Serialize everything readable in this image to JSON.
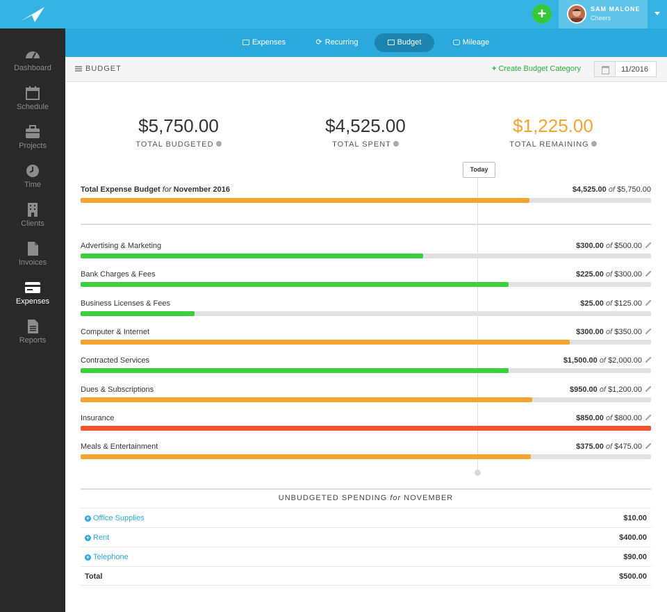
{
  "user": {
    "name": "SAM MALONE",
    "company": "Cheers"
  },
  "header": {
    "add_label": "+"
  },
  "sidebar": {
    "items": [
      {
        "label": "Dashboard",
        "icon": "dashboard-icon",
        "active": false
      },
      {
        "label": "Schedule",
        "icon": "calendar-icon",
        "active": false
      },
      {
        "label": "Projects",
        "icon": "briefcase-icon",
        "active": false
      },
      {
        "label": "Time",
        "icon": "clock-icon",
        "active": false
      },
      {
        "label": "Clients",
        "icon": "building-icon",
        "active": false
      },
      {
        "label": "Invoices",
        "icon": "document-icon",
        "active": false
      },
      {
        "label": "Expenses",
        "icon": "credit-card-icon",
        "active": true
      },
      {
        "label": "Reports",
        "icon": "report-icon",
        "active": false
      }
    ]
  },
  "tabs": [
    {
      "label": "Expenses",
      "active": false
    },
    {
      "label": "Recurring",
      "active": false
    },
    {
      "label": "Budget",
      "active": true
    },
    {
      "label": "Mileage",
      "active": false
    }
  ],
  "page": {
    "title": "BUDGET",
    "create_label": "Create Budget Category",
    "date": "11/2016"
  },
  "summary": {
    "budgeted": {
      "value": "$5,750.00",
      "label": "TOTAL BUDGETED"
    },
    "spent": {
      "value": "$4,525.00",
      "label": "TOTAL SPENT"
    },
    "remaining": {
      "value": "$1,225.00",
      "label": "TOTAL REMAINING"
    }
  },
  "today_label": "Today",
  "total_budget": {
    "label_prefix": "Total Expense Budget",
    "label_for": "for",
    "label_month": "November 2016",
    "spent": "$4,525.00",
    "of": "of",
    "budget": "$5,750.00",
    "progress": 0.787,
    "color": "#f5a431"
  },
  "colors": {
    "green": "#3ccf3c",
    "orange": "#f5a431",
    "red": "#f5522e",
    "accent": "#35b4e4"
  },
  "categories": [
    {
      "name": "Advertising & Marketing",
      "spent": "$300.00",
      "budget": "$500.00",
      "progress": 0.6,
      "color": "#3ccf3c"
    },
    {
      "name": "Bank Charges & Fees",
      "spent": "$225.00",
      "budget": "$300.00",
      "progress": 0.75,
      "color": "#3ccf3c"
    },
    {
      "name": "Business Licenses & Fees",
      "spent": "$25.00",
      "budget": "$125.00",
      "progress": 0.2,
      "color": "#3ccf3c"
    },
    {
      "name": "Computer & Internet",
      "spent": "$300.00",
      "budget": "$350.00",
      "progress": 0.857,
      "color": "#f5a431"
    },
    {
      "name": "Contracted Services",
      "spent": "$1,500.00",
      "budget": "$2,000.00",
      "progress": 0.75,
      "color": "#3ccf3c"
    },
    {
      "name": "Dues & Subscriptions",
      "spent": "$950.00",
      "budget": "$1,200.00",
      "progress": 0.792,
      "color": "#f5a431"
    },
    {
      "name": "Insurance",
      "spent": "$850.00",
      "budget": "$800.00",
      "progress": 1.0,
      "color": "#f5522e"
    },
    {
      "name": "Meals & Entertainment",
      "spent": "$375.00",
      "budget": "$475.00",
      "progress": 0.789,
      "color": "#f5a431"
    }
  ],
  "unbudgeted": {
    "title_prefix": "UNBUDGETED SPENDING",
    "title_for": "for",
    "title_month": "NOVEMBER",
    "rows": [
      {
        "name": "Office Supplies",
        "value": "$10.00"
      },
      {
        "name": "Rent",
        "value": "$400.00"
      },
      {
        "name": "Telephone",
        "value": "$90.00"
      }
    ],
    "total_label": "Total",
    "total_value": "$500.00"
  }
}
